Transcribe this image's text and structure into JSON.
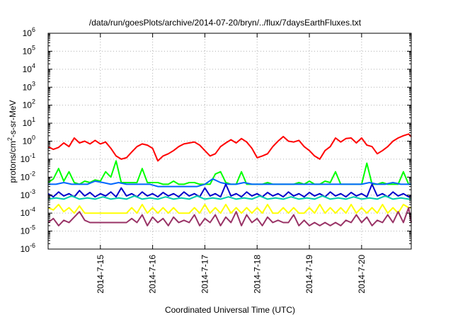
{
  "chart_data": {
    "type": "line",
    "title": "/data/run/goesPlots/archive/2014-07-20/bryn/../flux/7daysEarthFluxes.txt",
    "xlabel": "Coordinated Universal Time (UTC)",
    "ylabel": "protons/cm²-s-sr-MeV",
    "ylabel_parts": {
      "pre": "protons/cm",
      "sup": "2",
      "post": "-s-sr-MeV"
    },
    "y_scale": "log",
    "ylim_exp": [
      -6,
      6
    ],
    "y_tick_base": "10",
    "y_tick_exponents": [
      "6",
      "5",
      "4",
      "3",
      "2",
      "1",
      "0",
      "-1",
      "-2",
      "-3",
      "-4",
      "-5",
      "-6"
    ],
    "xlim_days": [
      14.0,
      20.95
    ],
    "x_ticks": [
      {
        "day": 15,
        "label": "2014-7-15"
      },
      {
        "day": 16,
        "label": "2014-7-16"
      },
      {
        "day": 17,
        "label": "2014-7-17"
      },
      {
        "day": 18,
        "label": "2014-7-18"
      },
      {
        "day": 19,
        "label": "2014-7-19"
      },
      {
        "day": 20,
        "label": "2014-7-20"
      }
    ],
    "grid": true,
    "legend": "none",
    "series": [
      {
        "color": "#ff0000",
        "x": [
          14.0,
          14.1,
          14.2,
          14.3,
          14.4,
          14.5,
          14.6,
          14.7,
          14.8,
          14.9,
          15.0,
          15.1,
          15.2,
          15.3,
          15.4,
          15.5,
          15.6,
          15.7,
          15.8,
          15.9,
          16.0,
          16.1,
          16.2,
          16.3,
          16.4,
          16.5,
          16.6,
          16.7,
          16.8,
          16.9,
          17.0,
          17.1,
          17.2,
          17.3,
          17.4,
          17.5,
          17.6,
          17.7,
          17.8,
          17.9,
          18.0,
          18.1,
          18.2,
          18.3,
          18.4,
          18.5,
          18.6,
          18.7,
          18.8,
          18.9,
          19.0,
          19.1,
          19.2,
          19.3,
          19.4,
          19.5,
          19.6,
          19.7,
          19.8,
          19.9,
          20.0,
          20.1,
          20.2,
          20.3,
          20.4,
          20.5,
          20.6,
          20.7,
          20.8,
          20.9,
          20.95
        ],
        "y": [
          0.5,
          0.35,
          0.45,
          0.8,
          0.5,
          1.5,
          0.8,
          1.0,
          0.7,
          1.1,
          0.7,
          0.9,
          0.4,
          0.15,
          0.1,
          0.12,
          0.25,
          0.5,
          0.7,
          0.6,
          0.4,
          0.08,
          0.15,
          0.2,
          0.3,
          0.5,
          0.7,
          0.8,
          0.9,
          0.6,
          0.3,
          0.15,
          0.2,
          0.5,
          0.8,
          1.2,
          0.8,
          1.4,
          0.9,
          0.4,
          0.12,
          0.15,
          0.2,
          0.5,
          1.0,
          1.8,
          1.0,
          0.9,
          1.1,
          0.5,
          0.3,
          0.15,
          0.1,
          0.3,
          0.5,
          1.5,
          0.9,
          1.4,
          1.5,
          0.8,
          1.5,
          0.6,
          0.5,
          0.2,
          0.3,
          0.5,
          1.0,
          1.5,
          2.0,
          2.5,
          1.8
        ]
      },
      {
        "color": "#00ff00",
        "x": [
          14.0,
          14.1,
          14.2,
          14.3,
          14.4,
          14.5,
          14.6,
          14.7,
          14.8,
          14.9,
          15.0,
          15.1,
          15.2,
          15.3,
          15.4,
          15.5,
          15.6,
          15.7,
          15.8,
          15.9,
          16.0,
          16.1,
          16.2,
          16.3,
          16.4,
          16.5,
          16.6,
          16.7,
          16.8,
          16.9,
          17.0,
          17.1,
          17.2,
          17.3,
          17.4,
          17.5,
          17.6,
          17.7,
          17.8,
          17.9,
          18.0,
          18.1,
          18.2,
          18.3,
          18.4,
          18.5,
          18.6,
          18.7,
          18.8,
          18.9,
          19.0,
          19.1,
          19.2,
          19.3,
          19.4,
          19.5,
          19.6,
          19.7,
          19.8,
          19.9,
          20.0,
          20.1,
          20.2,
          20.3,
          20.4,
          20.5,
          20.6,
          20.7,
          20.8,
          20.9,
          20.95
        ],
        "y": [
          0.005,
          0.008,
          0.03,
          0.006,
          0.02,
          0.005,
          0.004,
          0.006,
          0.005,
          0.007,
          0.006,
          0.02,
          0.01,
          0.08,
          0.005,
          0.005,
          0.005,
          0.005,
          0.03,
          0.005,
          0.005,
          0.005,
          0.004,
          0.004,
          0.006,
          0.004,
          0.004,
          0.005,
          0.005,
          0.004,
          0.004,
          0.004,
          0.015,
          0.02,
          0.005,
          0.004,
          0.004,
          0.02,
          0.004,
          0.004,
          0.004,
          0.004,
          0.005,
          0.004,
          0.004,
          0.004,
          0.004,
          0.004,
          0.005,
          0.004,
          0.006,
          0.004,
          0.004,
          0.006,
          0.005,
          0.02,
          0.004,
          0.004,
          0.004,
          0.004,
          0.004,
          0.06,
          0.004,
          0.004,
          0.005,
          0.004,
          0.004,
          0.004,
          0.02,
          0.004,
          0.004
        ]
      },
      {
        "color": "#0066ff",
        "x": [
          14.0,
          14.15,
          14.3,
          14.45,
          14.6,
          14.75,
          14.9,
          15.05,
          15.2,
          15.35,
          15.5,
          15.65,
          15.8,
          15.95,
          16.1,
          16.25,
          16.4,
          16.55,
          16.7,
          16.85,
          17.0,
          17.15,
          17.3,
          17.45,
          17.6,
          17.75,
          17.9,
          18.05,
          18.2,
          18.35,
          18.5,
          18.65,
          18.8,
          18.95,
          19.1,
          19.25,
          19.4,
          19.55,
          19.7,
          19.85,
          20.0,
          20.15,
          20.3,
          20.45,
          20.6,
          20.75,
          20.9,
          20.95
        ],
        "y": [
          0.004,
          0.004,
          0.005,
          0.004,
          0.004,
          0.004,
          0.006,
          0.005,
          0.004,
          0.005,
          0.004,
          0.004,
          0.004,
          0.004,
          0.003,
          0.003,
          0.003,
          0.003,
          0.003,
          0.003,
          0.004,
          0.008,
          0.005,
          0.004,
          0.004,
          0.005,
          0.004,
          0.004,
          0.004,
          0.004,
          0.004,
          0.004,
          0.004,
          0.004,
          0.004,
          0.004,
          0.004,
          0.004,
          0.004,
          0.004,
          0.004,
          0.005,
          0.004,
          0.004,
          0.005,
          0.004,
          0.004,
          0.004
        ]
      },
      {
        "color": "#0000cc",
        "x": [
          14.0,
          14.1,
          14.2,
          14.3,
          14.4,
          14.5,
          14.6,
          14.7,
          14.8,
          14.9,
          15.0,
          15.1,
          15.2,
          15.3,
          15.4,
          15.5,
          15.6,
          15.7,
          15.8,
          15.9,
          16.0,
          16.1,
          16.2,
          16.3,
          16.4,
          16.5,
          16.6,
          16.7,
          16.8,
          16.9,
          17.0,
          17.1,
          17.2,
          17.3,
          17.4,
          17.5,
          17.6,
          17.7,
          17.8,
          17.9,
          18.0,
          18.1,
          18.2,
          18.3,
          18.4,
          18.5,
          18.6,
          18.7,
          18.8,
          18.9,
          19.0,
          19.1,
          19.2,
          19.3,
          19.4,
          19.5,
          19.6,
          19.7,
          19.8,
          19.9,
          20.0,
          20.1,
          20.2,
          20.3,
          20.4,
          20.5,
          20.6,
          20.7,
          20.8,
          20.9,
          20.95
        ],
        "y": [
          0.0012,
          0.0008,
          0.0015,
          0.0009,
          0.0012,
          0.0008,
          0.0018,
          0.0009,
          0.0014,
          0.0008,
          0.0012,
          0.0009,
          0.0015,
          0.0008,
          0.0025,
          0.0009,
          0.0012,
          0.0008,
          0.0015,
          0.0009,
          0.0012,
          0.0008,
          0.0014,
          0.0009,
          0.0012,
          0.0008,
          0.0015,
          0.0009,
          0.0012,
          0.0008,
          0.0025,
          0.0009,
          0.0012,
          0.0008,
          0.004,
          0.0009,
          0.0012,
          0.0008,
          0.0015,
          0.0009,
          0.0012,
          0.0008,
          0.0014,
          0.0009,
          0.0012,
          0.0008,
          0.0015,
          0.0009,
          0.0012,
          0.0008,
          0.0014,
          0.0009,
          0.0012,
          0.0008,
          0.0015,
          0.0009,
          0.0012,
          0.0008,
          0.0014,
          0.0009,
          0.0012,
          0.0008,
          0.004,
          0.0009,
          0.0012,
          0.0008,
          0.0015,
          0.0009,
          0.0012,
          0.0008,
          0.0009
        ]
      },
      {
        "color": "#00ccaa",
        "x": [
          14.0,
          14.15,
          14.3,
          14.45,
          14.6,
          14.75,
          14.9,
          15.05,
          15.2,
          15.35,
          15.5,
          15.65,
          15.8,
          15.95,
          16.1,
          16.25,
          16.4,
          16.55,
          16.7,
          16.85,
          17.0,
          17.15,
          17.3,
          17.45,
          17.6,
          17.75,
          17.9,
          18.05,
          18.2,
          18.35,
          18.5,
          18.65,
          18.8,
          18.95,
          19.1,
          19.25,
          19.4,
          19.55,
          19.7,
          19.85,
          20.0,
          20.15,
          20.3,
          20.45,
          20.6,
          20.75,
          20.9,
          20.95
        ],
        "y": [
          0.0006,
          0.0007,
          0.0006,
          0.0009,
          0.0006,
          0.0007,
          0.0006,
          0.0008,
          0.0006,
          0.0007,
          0.0006,
          0.0009,
          0.0006,
          0.0007,
          0.0006,
          0.0008,
          0.0006,
          0.0007,
          0.0006,
          0.0009,
          0.0006,
          0.0007,
          0.0006,
          0.0008,
          0.0006,
          0.0007,
          0.0006,
          0.0009,
          0.0006,
          0.0007,
          0.0006,
          0.0008,
          0.0006,
          0.0007,
          0.0006,
          0.0009,
          0.0006,
          0.0007,
          0.0006,
          0.0008,
          0.0006,
          0.0007,
          0.0006,
          0.0009,
          0.0006,
          0.0007,
          0.0006,
          0.0006
        ]
      },
      {
        "color": "#ffff00",
        "x": [
          14.0,
          14.1,
          14.2,
          14.3,
          14.4,
          14.5,
          14.6,
          14.7,
          14.8,
          14.9,
          15.0,
          15.1,
          15.2,
          15.3,
          15.4,
          15.5,
          15.6,
          15.7,
          15.8,
          15.9,
          16.0,
          16.1,
          16.2,
          16.3,
          16.4,
          16.5,
          16.6,
          16.7,
          16.8,
          16.9,
          17.0,
          17.1,
          17.2,
          17.3,
          17.4,
          17.5,
          17.6,
          17.7,
          17.8,
          17.9,
          18.0,
          18.1,
          18.2,
          18.3,
          18.4,
          18.5,
          18.6,
          18.7,
          18.8,
          18.9,
          19.0,
          19.1,
          19.2,
          19.3,
          19.4,
          19.5,
          19.6,
          19.7,
          19.8,
          19.9,
          20.0,
          20.1,
          20.2,
          20.3,
          20.4,
          20.5,
          20.6,
          20.7,
          20.8,
          20.9,
          20.95
        ],
        "y": [
          0.0002,
          0.00015,
          0.0003,
          0.00012,
          0.0002,
          0.0001,
          0.00025,
          0.0001,
          0.0001,
          0.0001,
          0.0001,
          0.0001,
          0.0001,
          0.0001,
          0.0001,
          0.0001,
          0.0002,
          0.0001,
          0.0003,
          0.0001,
          0.0002,
          0.0001,
          0.0002,
          0.0001,
          0.0002,
          0.0001,
          0.0001,
          0.0001,
          0.0002,
          0.0001,
          0.0003,
          0.0001,
          0.0002,
          0.0001,
          0.0003,
          0.0001,
          0.0002,
          0.0001,
          0.0002,
          0.0001,
          0.0002,
          0.0001,
          0.0003,
          0.0001,
          0.0001,
          0.0002,
          0.0001,
          0.0002,
          0.0001,
          0.0001,
          0.0002,
          0.0001,
          0.0003,
          0.0001,
          0.0002,
          0.0001,
          0.0002,
          0.0001,
          0.0003,
          0.0001,
          0.0002,
          0.0001,
          0.0002,
          0.0001,
          0.0003,
          0.0001,
          0.0002,
          0.0001,
          0.0003,
          0.0002,
          0.0002
        ]
      },
      {
        "color": "#993366",
        "x": [
          14.0,
          14.1,
          14.2,
          14.3,
          14.4,
          14.5,
          14.6,
          14.7,
          14.8,
          14.9,
          15.0,
          15.1,
          15.2,
          15.3,
          15.4,
          15.5,
          15.6,
          15.7,
          15.8,
          15.9,
          16.0,
          16.1,
          16.2,
          16.3,
          16.4,
          16.5,
          16.6,
          16.7,
          16.8,
          16.9,
          17.0,
          17.1,
          17.2,
          17.3,
          17.4,
          17.5,
          17.6,
          17.7,
          17.8,
          17.9,
          18.0,
          18.1,
          18.2,
          18.3,
          18.4,
          18.5,
          18.6,
          18.7,
          18.8,
          18.9,
          19.0,
          19.1,
          19.2,
          19.3,
          19.4,
          19.5,
          19.6,
          19.7,
          19.8,
          19.9,
          20.0,
          20.1,
          20.2,
          20.3,
          20.4,
          20.5,
          20.6,
          20.7,
          20.8,
          20.9,
          20.95
        ],
        "y": [
          3e-05,
          5e-05,
          2e-05,
          4e-05,
          3e-05,
          6e-05,
          0.00012,
          4e-05,
          3e-05,
          3e-05,
          3e-05,
          3e-05,
          3e-05,
          3e-05,
          3e-05,
          3e-05,
          5e-05,
          3e-05,
          8e-05,
          2e-05,
          6e-05,
          3e-05,
          5e-05,
          2e-05,
          6e-05,
          3e-05,
          4e-05,
          3e-05,
          8e-05,
          2e-05,
          5e-05,
          3e-05,
          8e-05,
          2e-05,
          6e-05,
          3e-05,
          0.00012,
          2e-05,
          8e-05,
          3e-05,
          5e-05,
          2e-05,
          6e-05,
          3e-05,
          4e-05,
          3e-05,
          3e-05,
          8e-05,
          2e-05,
          4e-05,
          2e-05,
          3e-05,
          2e-05,
          3e-05,
          2e-05,
          3e-05,
          2e-05,
          4e-05,
          3e-05,
          8e-05,
          3e-05,
          6e-05,
          2e-05,
          4e-05,
          3e-05,
          8e-05,
          3e-05,
          0.00012,
          3e-05,
          0.0002,
          3e-05
        ]
      }
    ]
  }
}
